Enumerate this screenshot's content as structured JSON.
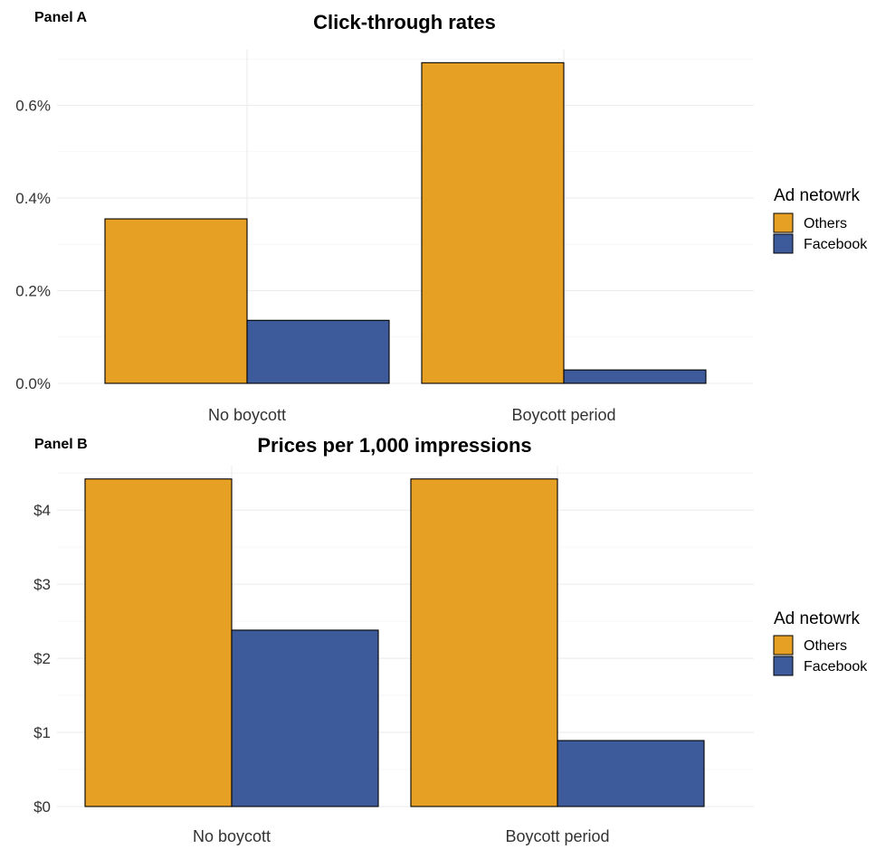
{
  "colors": {
    "Others": "#E6A023",
    "Facebook": "#3D5A9A"
  },
  "chart_data": [
    {
      "type": "bar",
      "panel_label": "Panel A",
      "title": "Click-through rates",
      "categories": [
        "No boycott",
        "Boycott period"
      ],
      "series": [
        {
          "name": "Others",
          "values": [
            0.355,
            0.692
          ]
        },
        {
          "name": "Facebook",
          "values": [
            0.136,
            0.029
          ]
        }
      ],
      "ylim": [
        0,
        0.72
      ],
      "yticks": [
        0,
        0.2,
        0.4,
        0.6
      ],
      "ytick_labels": [
        "0.0%",
        "0.2%",
        "0.4%",
        "0.6%"
      ],
      "grid": true,
      "legend": {
        "title": "Ad netowrk",
        "position": "right",
        "entries": [
          "Others",
          "Facebook"
        ]
      }
    },
    {
      "type": "bar",
      "panel_label": "Panel B",
      "title": "Prices per 1,000 impressions",
      "categories": [
        "No boycott",
        "Boycott period"
      ],
      "series": [
        {
          "name": "Others",
          "values": [
            4.42,
            4.42
          ]
        },
        {
          "name": "Facebook",
          "values": [
            2.38,
            0.89
          ]
        }
      ],
      "ylim": [
        0,
        4.6
      ],
      "yticks": [
        0,
        1,
        2,
        3,
        4
      ],
      "ytick_labels": [
        "$0",
        "$1",
        "$2",
        "$3",
        "$4"
      ],
      "grid": true,
      "legend": {
        "title": "Ad netowrk",
        "position": "right",
        "entries": [
          "Others",
          "Facebook"
        ]
      }
    }
  ]
}
